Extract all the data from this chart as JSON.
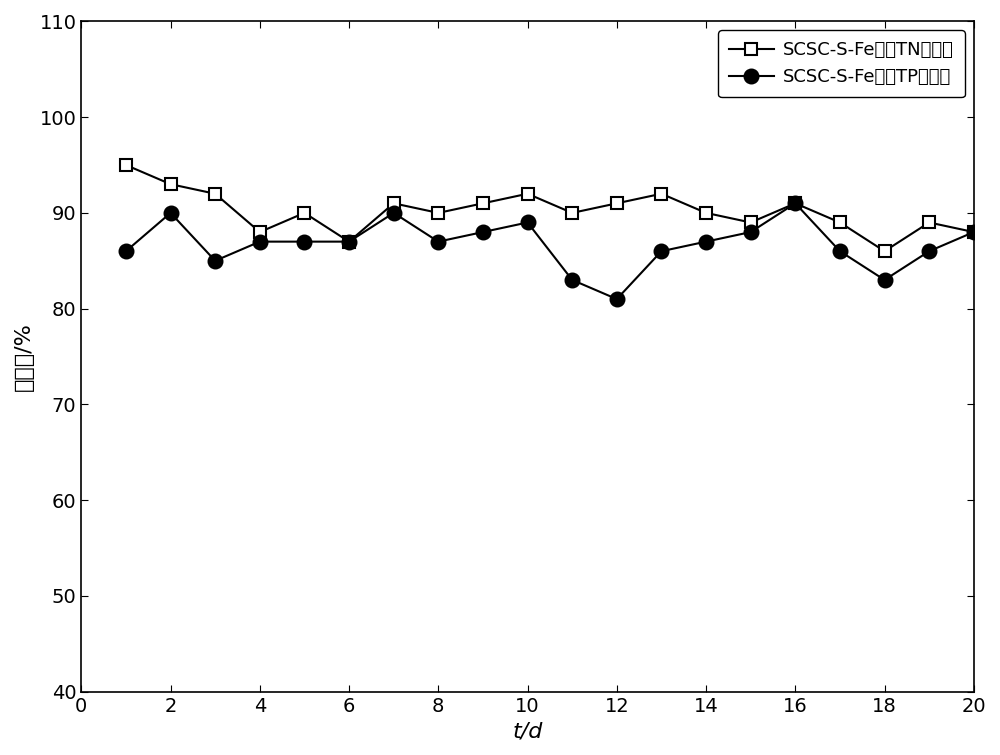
{
  "x": [
    1,
    2,
    3,
    4,
    5,
    6,
    7,
    8,
    9,
    10,
    11,
    12,
    13,
    14,
    15,
    16,
    17,
    18,
    19,
    20
  ],
  "TN": [
    95,
    93,
    92,
    88,
    90,
    87,
    91,
    90,
    91,
    92,
    90,
    91,
    92,
    90,
    89,
    91,
    89,
    86,
    89,
    88
  ],
  "TP": [
    86,
    90,
    85,
    87,
    87,
    87,
    90,
    87,
    88,
    89,
    83,
    81,
    86,
    87,
    88,
    91,
    86,
    83,
    86,
    88
  ],
  "xlabel": "t/d",
  "ylabel": "去除率/%",
  "xlim": [
    0,
    20
  ],
  "ylim": [
    40,
    110
  ],
  "yticks": [
    40,
    50,
    60,
    70,
    80,
    90,
    100,
    110
  ],
  "xticks": [
    0,
    2,
    4,
    6,
    8,
    10,
    12,
    14,
    16,
    18,
    20
  ],
  "legend_TN": "SCSC-S-Fe体系TN去除率",
  "legend_TP": "SCSC-S-Fe体系TP去除率",
  "line_color": "#000000",
  "bg_color": "#ffffff"
}
